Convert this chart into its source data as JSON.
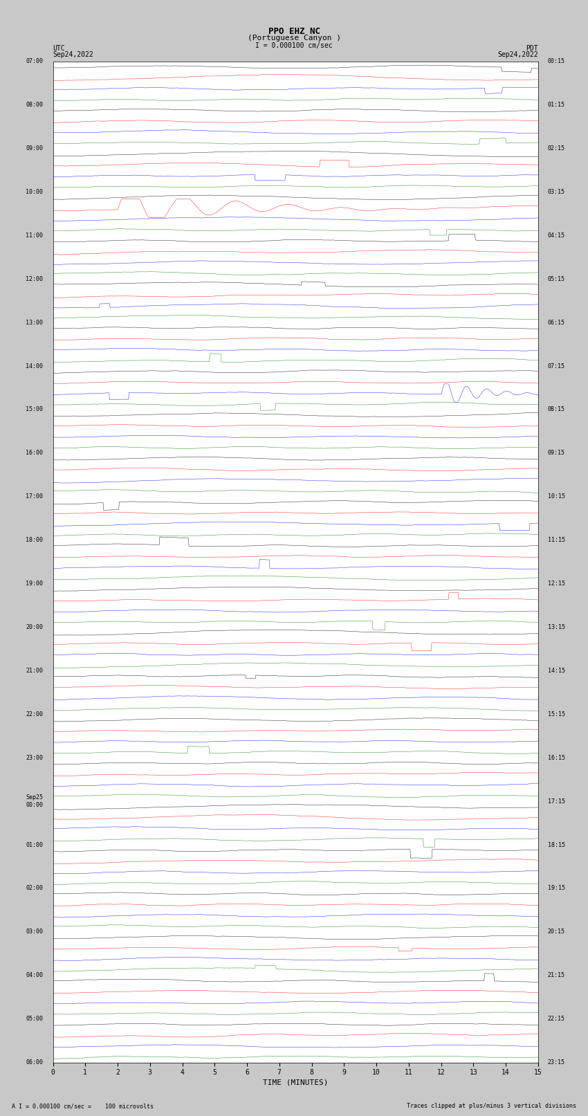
{
  "title_line1": "PPO EHZ NC",
  "title_line2": "(Portuguese Canyon )",
  "title_line3": "I = 0.000100 cm/sec",
  "utc_label": "UTC",
  "utc_date": "Sep24,2022",
  "pdt_label": "PDT",
  "pdt_date": "Sep24,2022",
  "xlabel": "TIME (MINUTES)",
  "footnote_left": "A I = 0.000100 cm/sec =    100 microvolts",
  "footnote_right": "Traces clipped at plus/minus 3 vertical divisions",
  "colors": [
    "black",
    "red",
    "blue",
    "green"
  ],
  "n_rows": 23,
  "traces_per_row": 4,
  "n_points": 900,
  "xlim": [
    0,
    15
  ],
  "xticks": [
    0,
    1,
    2,
    3,
    4,
    5,
    6,
    7,
    8,
    9,
    10,
    11,
    12,
    13,
    14,
    15
  ],
  "utc_times": [
    "07:00",
    "",
    "",
    "",
    "08:00",
    "",
    "",
    "",
    "09:00",
    "",
    "",
    "",
    "10:00",
    "",
    "",
    "",
    "11:00",
    "",
    "",
    "",
    "12:00",
    "",
    "",
    "",
    "13:00",
    "",
    "",
    "",
    "14:00",
    "",
    "",
    "",
    "15:00",
    "",
    "",
    "",
    "16:00",
    "",
    "",
    "",
    "17:00",
    "",
    "",
    "",
    "18:00",
    "",
    "",
    "",
    "19:00",
    "",
    "",
    "",
    "20:00",
    "",
    "",
    "",
    "21:00",
    "",
    "",
    "",
    "22:00",
    "",
    "",
    "",
    "23:00",
    "",
    "",
    "",
    "Sep25\n00:00",
    "",
    "",
    "",
    "01:00",
    "",
    "",
    "",
    "02:00",
    "",
    "",
    "",
    "03:00",
    "",
    "",
    "",
    "04:00",
    "",
    "",
    "",
    "05:00",
    "",
    "",
    "",
    "06:00",
    "",
    "",
    ""
  ],
  "pdt_times": [
    "00:15",
    "",
    "",
    "",
    "01:15",
    "",
    "",
    "",
    "02:15",
    "",
    "",
    "",
    "03:15",
    "",
    "",
    "",
    "04:15",
    "",
    "",
    "",
    "05:15",
    "",
    "",
    "",
    "06:15",
    "",
    "",
    "",
    "07:15",
    "",
    "",
    "",
    "08:15",
    "",
    "",
    "",
    "09:15",
    "",
    "",
    "",
    "10:15",
    "",
    "",
    "",
    "11:15",
    "",
    "",
    "",
    "12:15",
    "",
    "",
    "",
    "13:15",
    "",
    "",
    "",
    "14:15",
    "",
    "",
    "",
    "15:15",
    "",
    "",
    "",
    "16:15",
    "",
    "",
    "",
    "17:15",
    "",
    "",
    "",
    "18:15",
    "",
    "",
    "",
    "19:15",
    "",
    "",
    "",
    "20:15",
    "",
    "",
    "",
    "21:15",
    "",
    "",
    "",
    "22:15",
    "",
    "",
    "",
    "23:15",
    "",
    "",
    ""
  ],
  "bg_color": "white",
  "fig_bg": "#c8c8c8",
  "amplitude_scale": 0.35,
  "noise_scale": 0.08
}
